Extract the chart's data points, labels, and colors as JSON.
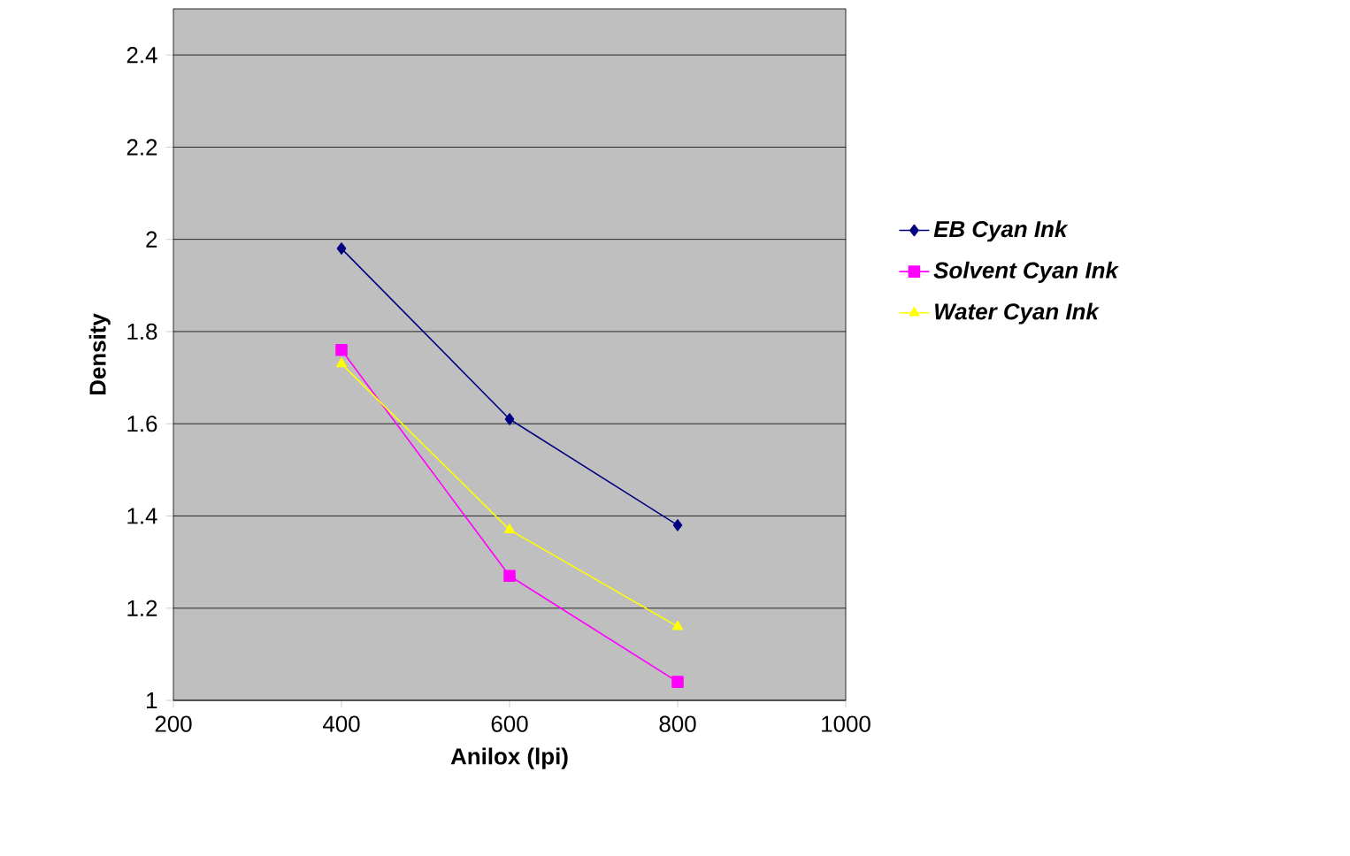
{
  "chart_data": {
    "type": "line",
    "xlabel": "Anilox (lpi)",
    "ylabel": "Density",
    "x": [
      400,
      600,
      800
    ],
    "series": [
      {
        "name": "EB Cyan Ink",
        "color": "#000080",
        "marker": "diamond",
        "values": [
          1.98,
          1.61,
          1.38
        ]
      },
      {
        "name": "Solvent Cyan Ink",
        "color": "#ff00ff",
        "marker": "square",
        "values": [
          1.76,
          1.27,
          1.04
        ]
      },
      {
        "name": "Water Cyan Ink",
        "color": "#ffff00",
        "marker": "triangle",
        "values": [
          1.73,
          1.37,
          1.16
        ]
      }
    ],
    "xlim": [
      200,
      1000
    ],
    "xticks": [
      200,
      400,
      600,
      800,
      1000
    ],
    "ylim": [
      1,
      2.5
    ],
    "yticks": [
      1,
      1.2,
      1.4,
      1.6,
      1.8,
      2,
      2.2,
      2.4
    ],
    "grid": "y",
    "legend": "right",
    "line_style": "solid"
  }
}
